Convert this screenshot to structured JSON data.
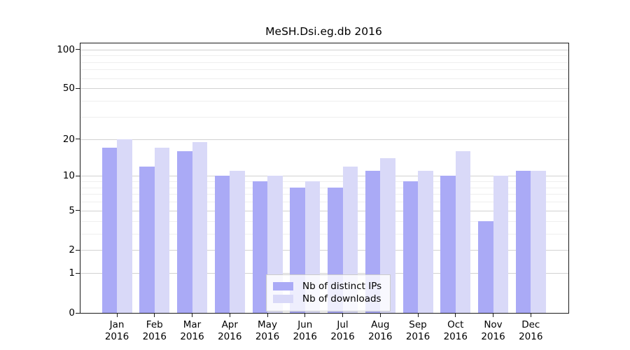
{
  "chart_data": {
    "type": "bar",
    "title": "MeSH.Dsi.eg.db 2016",
    "categories": [
      "Jan",
      "Feb",
      "Mar",
      "Apr",
      "May",
      "Jun",
      "Jul",
      "Aug",
      "Sep",
      "Oct",
      "Nov",
      "Dec"
    ],
    "x_year_label": "2016",
    "series": [
      {
        "name": "Nb of distinct IPs",
        "color": "#aaaaf6",
        "values": [
          17,
          12,
          16,
          10,
          9,
          8,
          8,
          11,
          9,
          10,
          4,
          11
        ]
      },
      {
        "name": "Nb of downloads",
        "color": "#d9d9f8",
        "values": [
          20,
          17,
          19,
          11,
          10,
          9,
          12,
          14,
          11,
          16,
          10,
          11
        ]
      }
    ],
    "y_axis": {
      "ticks": [
        0,
        1,
        2,
        5,
        10,
        20,
        50,
        100
      ],
      "minor_gridlines": [
        3,
        4,
        6,
        7,
        8,
        9,
        30,
        40,
        60,
        70,
        80,
        90
      ],
      "scale": "log10(value+1)",
      "range": [
        0,
        115
      ]
    },
    "xlabel": "",
    "ylabel": "",
    "grid": true,
    "legend_position": "inside-bottom-center",
    "colors": {
      "major_gridline": "#d2d2d2",
      "minor_gridline": "#efefef",
      "spine": "#1a1a1a",
      "background": "#ffffff"
    }
  }
}
